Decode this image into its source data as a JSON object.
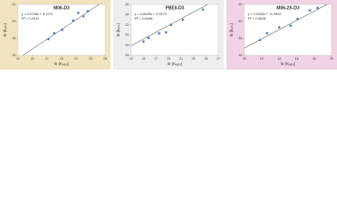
{
  "chart_data": [
    {
      "type": "scatter",
      "title": "M06-D3",
      "equation": "y = 0.5748x + 8.1172",
      "r2": "R² = 0.9119",
      "xlabel": "ln (Kₒₑₗₒ)",
      "ylabel": "ln (kₒₕₛ)",
      "x": [
        17.2,
        18.0,
        19.1,
        20.6,
        21.3,
        22.0,
        22.6
      ],
      "values": [
        17.9,
        18.6,
        19.0,
        20.1,
        21.0,
        20.6,
        21.2
      ],
      "trendline": {
        "slope": 0.5748,
        "intercept": 8.1172
      },
      "color": "#4a7fbf",
      "xlim": [
        13,
        25
      ],
      "xticks": [
        13,
        15,
        17,
        19,
        21,
        23,
        25
      ],
      "ylim": [
        16,
        22
      ],
      "yticks": [
        16,
        18,
        20,
        22
      ],
      "background": "#f2e4bf"
    },
    {
      "type": "scatter",
      "title": "PBE0-D3",
      "equation": "y = 0.6625x + 9.2670",
      "r2": "R² = 0.8468",
      "xlabel": "ln (Kₒₑₗₒ)",
      "ylabel": "ln (kₒₕₛ)",
      "x": [
        15.0,
        15.8,
        17.5,
        18.6,
        19.4,
        21.3,
        24.5
      ],
      "values": [
        18.7,
        19.4,
        20.3,
        20.5,
        22.0,
        23.0,
        25.0
      ],
      "trendline": {
        "slope": 0.6625,
        "intercept": 9.267
      },
      "color": "#4a7fbf",
      "xlim": [
        13,
        27
      ],
      "xticks": [
        13,
        15,
        17,
        19,
        21,
        23,
        25,
        27
      ],
      "ylim": [
        16,
        26
      ],
      "yticks": [
        16,
        18,
        20,
        22,
        24,
        26
      ],
      "background": "#eeeeee"
    },
    {
      "type": "scatter",
      "title": "M06-2X-D3",
      "equation": "y = 0.5453x + 11.3932",
      "r2": "R² = 0.8626",
      "xlabel": "ln (Kₒₑₗₒ)",
      "ylabel": "ln (kₒₕₛ)",
      "x": [
        11.8,
        12.6,
        14.0,
        15.3,
        16.1,
        17.5,
        18.4
      ],
      "values": [
        17.8,
        18.6,
        19.3,
        19.5,
        20.3,
        21.3,
        21.6
      ],
      "trendline": {
        "slope": 0.5453,
        "intercept": 11.3932
      },
      "color": "#4a7fbf",
      "xlim": [
        10,
        20
      ],
      "xticks": [
        10,
        12,
        14,
        16,
        18,
        20
      ],
      "ylim": [
        16,
        22
      ],
      "yticks": [
        16,
        18,
        20,
        22
      ],
      "background": "#f0d3e5"
    }
  ]
}
